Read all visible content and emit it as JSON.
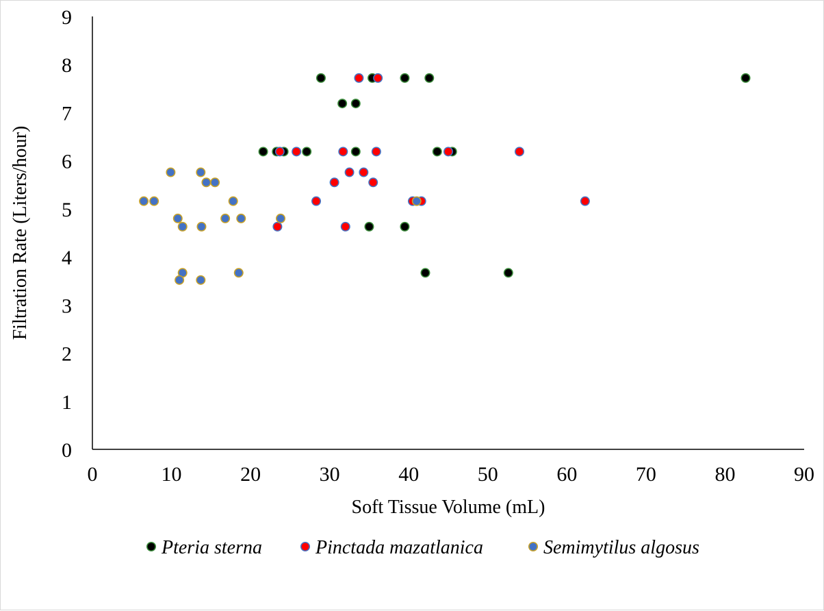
{
  "chart_data": {
    "type": "scatter",
    "xlabel": "Soft Tissue Volume (mL)",
    "ylabel": "Filtration Rate (Liters/hour)",
    "xlim": [
      0,
      90
    ],
    "ylim": [
      0,
      9
    ],
    "x_ticks": [
      0,
      10,
      20,
      30,
      40,
      50,
      60,
      70,
      80,
      90
    ],
    "y_ticks": [
      0,
      1,
      2,
      3,
      4,
      5,
      6,
      7,
      8,
      9
    ],
    "grid": false,
    "legend_position": "bottom",
    "series": [
      {
        "name": "Pteria sterna",
        "fill": "#000000",
        "stroke": "#3a8a3a",
        "points": [
          [
            28.9,
            7.72
          ],
          [
            35.4,
            7.72
          ],
          [
            39.5,
            7.72
          ],
          [
            42.6,
            7.72
          ],
          [
            82.6,
            7.72
          ],
          [
            31.6,
            7.19
          ],
          [
            33.3,
            7.19
          ],
          [
            21.6,
            6.19
          ],
          [
            23.3,
            6.19
          ],
          [
            24.2,
            6.19
          ],
          [
            27.1,
            6.19
          ],
          [
            33.3,
            6.19
          ],
          [
            43.6,
            6.19
          ],
          [
            45.5,
            6.19
          ],
          [
            35.0,
            4.63
          ],
          [
            39.5,
            4.63
          ],
          [
            42.1,
            3.67
          ],
          [
            52.6,
            3.67
          ]
        ]
      },
      {
        "name": "Pinctada mazatlanica",
        "fill": "#ff0000",
        "stroke": "#4472c4",
        "points": [
          [
            33.7,
            7.72
          ],
          [
            36.1,
            7.72
          ],
          [
            23.7,
            6.19
          ],
          [
            25.8,
            6.19
          ],
          [
            31.7,
            6.19
          ],
          [
            35.9,
            6.19
          ],
          [
            45.0,
            6.19
          ],
          [
            54.0,
            6.19
          ],
          [
            32.5,
            5.76
          ],
          [
            34.3,
            5.76
          ],
          [
            30.6,
            5.55
          ],
          [
            35.5,
            5.55
          ],
          [
            28.3,
            5.16
          ],
          [
            40.5,
            5.16
          ],
          [
            41.6,
            5.16
          ],
          [
            62.3,
            5.16
          ],
          [
            23.4,
            4.63
          ],
          [
            32.0,
            4.63
          ]
        ]
      },
      {
        "name": "Semimytilus algosus",
        "fill": "#4472c4",
        "stroke": "#c9a227",
        "points": [
          [
            9.9,
            5.76
          ],
          [
            13.7,
            5.76
          ],
          [
            14.4,
            5.55
          ],
          [
            15.5,
            5.55
          ],
          [
            6.5,
            5.16
          ],
          [
            7.8,
            5.16
          ],
          [
            17.8,
            5.16
          ],
          [
            41.0,
            5.16
          ],
          [
            10.8,
            4.8
          ],
          [
            16.8,
            4.8
          ],
          [
            18.8,
            4.8
          ],
          [
            23.8,
            4.8
          ],
          [
            11.4,
            4.63
          ],
          [
            13.8,
            4.63
          ],
          [
            11.4,
            3.67
          ],
          [
            18.5,
            3.67
          ],
          [
            11.0,
            3.52
          ],
          [
            13.7,
            3.52
          ]
        ]
      }
    ]
  }
}
